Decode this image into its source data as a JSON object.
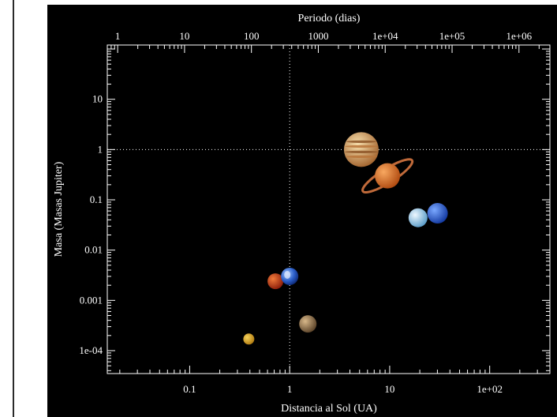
{
  "chart_data": {
    "type": "scatter",
    "title": "",
    "xlabel": "Distancia al Sol (UA)",
    "ylabel": "Masa (Masas Jupiter)",
    "x2label": "Periodo (dias)",
    "x_scale": "log",
    "y_scale": "log",
    "x2_scale": "log",
    "xlim": [
      0.015,
      400
    ],
    "ylim": [
      3.5e-05,
      120
    ],
    "x2lim": [
      0.7,
      2900000
    ],
    "x_tick_labels": [
      {
        "value": 0.1,
        "label": "0.1"
      },
      {
        "value": 1,
        "label": "1"
      },
      {
        "value": 10,
        "label": "10"
      },
      {
        "value": 100,
        "label": "1e+02"
      }
    ],
    "y_tick_labels": [
      {
        "value": 0.0001,
        "label": "1e-04"
      },
      {
        "value": 0.001,
        "label": "0.001"
      },
      {
        "value": 0.01,
        "label": "0.01"
      },
      {
        "value": 0.1,
        "label": "0.1"
      },
      {
        "value": 1,
        "label": "1"
      },
      {
        "value": 10,
        "label": "10"
      }
    ],
    "x2_tick_labels": [
      {
        "value": 1,
        "label": "1"
      },
      {
        "value": 10,
        "label": "10"
      },
      {
        "value": 100,
        "label": "100"
      },
      {
        "value": 1000,
        "label": "1000"
      },
      {
        "value": 10000,
        "label": "1e+04"
      },
      {
        "value": 100000,
        "label": "1e+05"
      },
      {
        "value": 1000000,
        "label": "1e+06"
      }
    ],
    "reference_lines": [
      {
        "axis": "x",
        "value": 1,
        "style": "dotted"
      },
      {
        "axis": "y",
        "value": 1,
        "style": "dotted"
      }
    ],
    "grid": false,
    "points": [
      {
        "x": 0.39,
        "y": 0.00017,
        "icon": "mercury-icon",
        "color": "#d9a21b"
      },
      {
        "x": 0.72,
        "y": 0.0024,
        "icon": "venus-icon",
        "color": "#d2401a"
      },
      {
        "x": 1.0,
        "y": 0.003,
        "icon": "earth-icon",
        "color": "#2b5ec8"
      },
      {
        "x": 1.52,
        "y": 0.00034,
        "icon": "mars-icon",
        "color": "#a0784a"
      },
      {
        "x": 5.2,
        "y": 1.0,
        "icon": "jupiter-icon",
        "color": "#d8a058"
      },
      {
        "x": 9.5,
        "y": 0.3,
        "icon": "saturn-icon",
        "color": "#e07a30"
      },
      {
        "x": 19.2,
        "y": 0.044,
        "icon": "uranus-icon",
        "color": "#a8d4f0"
      },
      {
        "x": 30.1,
        "y": 0.054,
        "icon": "neptune-icon",
        "color": "#2a62d8"
      }
    ]
  }
}
